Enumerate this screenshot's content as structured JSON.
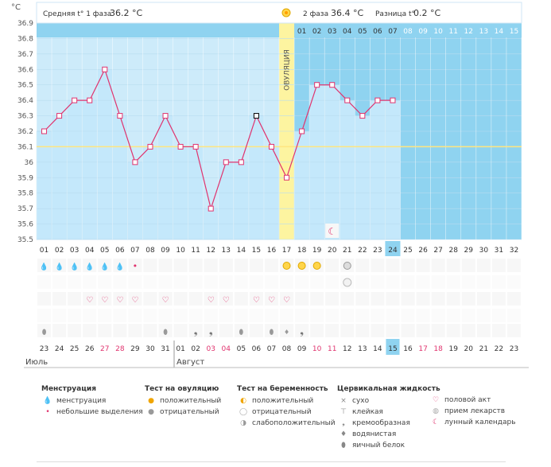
{
  "header": {
    "axis_unit": "°C",
    "phase1_label": "Средняя t° 1 фаза",
    "phase1_value": "36.2 °C",
    "phase2_label": "2 фаза",
    "phase2_value": "36.4 °C",
    "diff_label": "Разница t°",
    "diff_value": "0.2 °C",
    "ovulation_label": "ОВУЛЯЦИЯ"
  },
  "colors": {
    "phase1": "#cdebfa",
    "phase2": "#8fd3f0",
    "ovulation": "#fdf4a0",
    "line": "#e0336e",
    "coverline": "#ffe680"
  },
  "chart_data": {
    "type": "line",
    "y_ticks": [
      "36.9",
      "36.8",
      "36.7",
      "36.6",
      "36.5",
      "36.4",
      "36.3",
      "36.2",
      "36.1",
      "36",
      "35.9",
      "35.8",
      "35.7",
      "35.6",
      "35.5"
    ],
    "ylim": [
      35.5,
      36.9
    ],
    "cycle_days": [
      "01",
      "02",
      "03",
      "04",
      "05",
      "06",
      "07",
      "08",
      "09",
      "10",
      "11",
      "12",
      "13",
      "14",
      "15",
      "16",
      "17",
      "18",
      "19",
      "20",
      "21",
      "22",
      "23",
      "24",
      "25",
      "26",
      "27",
      "28",
      "29",
      "30",
      "31",
      "32"
    ],
    "phase2_days": [
      "01",
      "02",
      "03",
      "04",
      "05",
      "06",
      "07",
      "08",
      "09",
      "10",
      "11",
      "12",
      "13",
      "14",
      "15"
    ],
    "temperatures": [
      36.2,
      36.3,
      36.4,
      36.4,
      36.6,
      36.3,
      36.0,
      36.1,
      36.3,
      36.1,
      36.1,
      35.7,
      36.0,
      36.0,
      36.3,
      36.1,
      35.9,
      36.2,
      36.5,
      36.5,
      36.4,
      36.3,
      36.4,
      36.4
    ],
    "ovulation_day": 17,
    "current_day": 24,
    "coverline": 36.1,
    "calendar_days": [
      "23",
      "24",
      "25",
      "26",
      "27",
      "28",
      "29",
      "30",
      "31",
      "01",
      "02",
      "03",
      "04",
      "05",
      "06",
      "07",
      "08",
      "09",
      "10",
      "11",
      "12",
      "13",
      "14",
      "15",
      "16",
      "17",
      "18",
      "19",
      "20",
      "21",
      "22",
      "23"
    ],
    "weekend_indices": [
      4,
      5,
      11,
      12,
      18,
      19,
      25,
      26
    ],
    "today_calendar": "15",
    "month1": "Июль",
    "month2": "Август"
  },
  "legend": {
    "menstruation": {
      "title": "Менструация",
      "items": [
        "менструация",
        "небольшие выделения"
      ]
    },
    "ovulation_test": {
      "title": "Тест на овуляцию",
      "items": [
        "положительный",
        "отрицательный"
      ]
    },
    "pregnancy_test": {
      "title": "Тест на беременность",
      "items": [
        "положительный",
        "отрицательный",
        "слабоположительный"
      ]
    },
    "cervical": {
      "title": "Цервикальная жидкость",
      "items": [
        "сухо",
        "клейкая",
        "кремообразная",
        "водянистая",
        "яичный белок"
      ]
    },
    "other": {
      "items": [
        "половой акт",
        "прием лекарств",
        "лунный календарь"
      ]
    }
  }
}
